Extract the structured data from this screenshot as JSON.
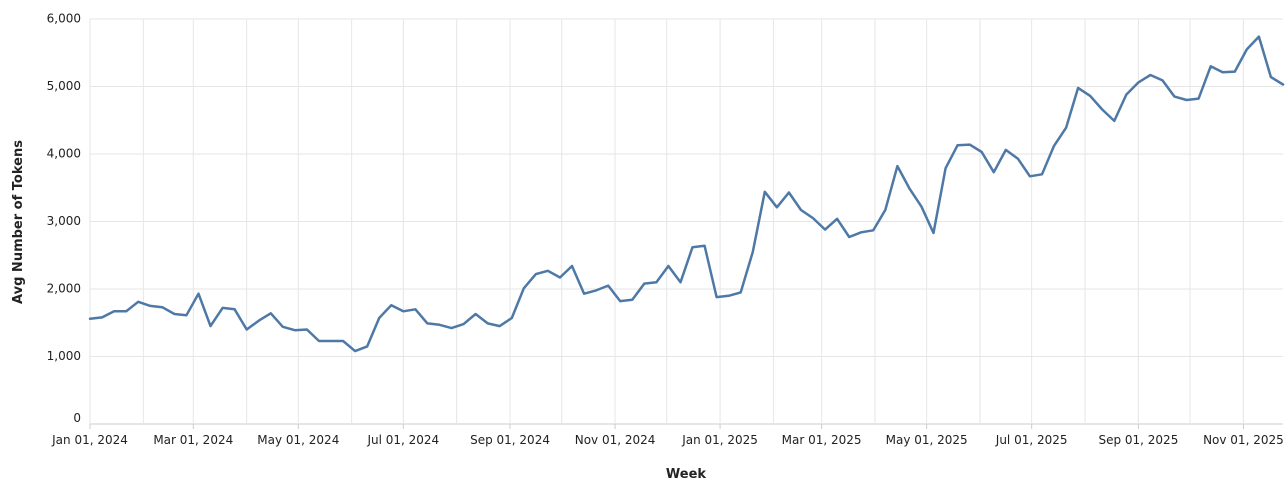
{
  "chart_data": {
    "type": "line",
    "title": "",
    "xlabel": "Week",
    "ylabel": "Avg Number of Tokens",
    "ylim": [
      0,
      6000
    ],
    "yticks": [
      0,
      1000,
      2000,
      3000,
      4000,
      5000,
      6000
    ],
    "ytick_labels": [
      "0",
      "1,000",
      "2,000",
      "3,000",
      "4,000",
      "5,000",
      "6,000"
    ],
    "xlim": [
      "2024-01-01",
      "2025-11-24"
    ],
    "xticks": [
      {
        "date": "2024-01-01",
        "label": "Jan 01, 2024"
      },
      {
        "date": "2024-03-01",
        "label": "Mar 01, 2024"
      },
      {
        "date": "2024-05-01",
        "label": "May 01, 2024"
      },
      {
        "date": "2024-07-01",
        "label": "Jul 01, 2024"
      },
      {
        "date": "2024-09-01",
        "label": "Sep 01, 2024"
      },
      {
        "date": "2024-11-01",
        "label": "Nov 01, 2024"
      },
      {
        "date": "2025-01-01",
        "label": "Jan 01, 2025"
      },
      {
        "date": "2025-03-01",
        "label": "Mar 01, 2025"
      },
      {
        "date": "2025-05-01",
        "label": "May 01, 2025"
      },
      {
        "date": "2025-07-01",
        "label": "Jul 01, 2025"
      },
      {
        "date": "2025-09-01",
        "label": "Sep 01, 2025"
      },
      {
        "date": "2025-11-01",
        "label": "Nov 01, 2025"
      }
    ],
    "grid": true,
    "line_color": "#4e79a7",
    "series": [
      {
        "start": "2024-01-01",
        "interval_days": 7,
        "values": [
          1560,
          1580,
          1670,
          1670,
          1810,
          1750,
          1730,
          1630,
          1610,
          1930,
          1450,
          1720,
          1700,
          1400,
          1530,
          1640,
          1440,
          1390,
          1400,
          1230,
          1230,
          1230,
          1080,
          1150,
          1570,
          1760,
          1670,
          1700,
          1490,
          1470,
          1420,
          1480,
          1630,
          1490,
          1450,
          1570,
          2010,
          2220,
          2270,
          2170,
          2340,
          1930,
          1980,
          2050,
          1820,
          1840,
          2080,
          2100,
          2340,
          2100,
          2620,
          2640,
          1880,
          1900,
          1950,
          2550,
          3440,
          3210,
          3430,
          3170,
          3050,
          2880,
          3040,
          2770,
          2840,
          2870,
          3170,
          3820,
          3490,
          3220,
          2830,
          3790,
          4130,
          4140,
          4030,
          3730,
          4060,
          3930,
          3670,
          3700,
          4120,
          4390,
          4980,
          4860,
          4660,
          4490,
          4880,
          5060,
          5170,
          5090,
          4850,
          4800,
          4820,
          5300,
          5210,
          5220,
          5550,
          5740,
          5140,
          5030
        ]
      }
    ]
  }
}
